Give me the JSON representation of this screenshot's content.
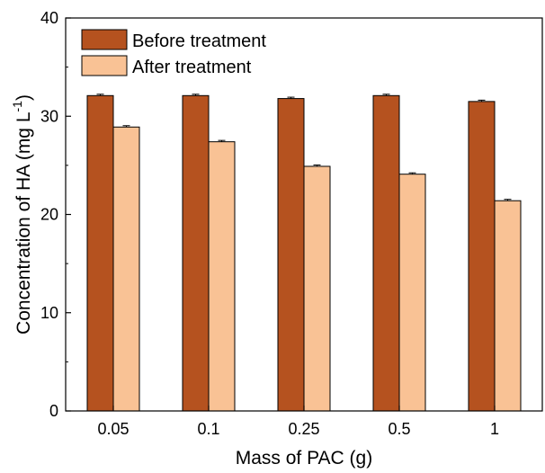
{
  "chart_data": {
    "type": "bar",
    "categories": [
      "0.05",
      "0.1",
      "0.25",
      "0.5",
      "1"
    ],
    "series": [
      {
        "name": "Before treatment",
        "values": [
          32.1,
          32.1,
          31.8,
          32.1,
          31.5
        ],
        "color": "#b5521f"
      },
      {
        "name": "After treatment",
        "values": [
          28.9,
          27.4,
          24.9,
          24.1,
          21.4
        ],
        "color": "#f9c295"
      }
    ],
    "xlabel": "Mass of PAC (g)",
    "ylabel_main": "Concentration of HA (mg L",
    "ylabel_sup": "-1",
    "ylabel_close": ")",
    "ylim": [
      0,
      40
    ],
    "yticks": [
      "0",
      "10",
      "20",
      "30",
      "40"
    ],
    "grid": false,
    "legend_position": "top-left"
  }
}
